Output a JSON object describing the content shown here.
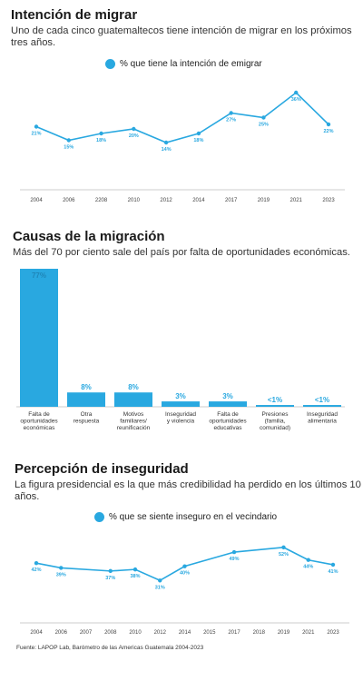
{
  "colors": {
    "accent": "#29a8e0",
    "axis": "#cccccc",
    "text": "#333333"
  },
  "section1": {
    "title": "Intención de migrar",
    "subtitle": "Uno de cada cinco guatemaltecos tiene intención de migrar en los próximos tres años.",
    "legend": "% que tiene la intención de emigrar"
  },
  "section2": {
    "title": "Causas de la migración",
    "subtitle": "Más del 70 por ciento sale del país por falta de oportunidades económicas."
  },
  "section3": {
    "title": "Percepción de inseguridad",
    "subtitle": "La figura presidencial es la que más credibilidad ha perdido en los últimos 10 años.",
    "legend": "% que se siente inseguro en el vecindario"
  },
  "source": "Fuente: LAPOP Lab, Barómetro de las Americas Guatemala 2004-2023",
  "chart_data": [
    {
      "type": "line",
      "x": [
        "2004",
        "2006",
        "2208",
        "2010",
        "2012",
        "2014",
        "2017",
        "2019",
        "2021",
        "2023"
      ],
      "series": [
        {
          "name": "% que tiene la intención de emigrar",
          "values": [
            21,
            15,
            18,
            20,
            14,
            18,
            27,
            25,
            36,
            22
          ]
        }
      ],
      "labels": [
        "21%",
        "15%",
        "18%",
        "20%",
        "14%",
        "18%",
        "27%",
        "25%",
        "36%",
        "22%"
      ],
      "ylim": [
        0,
        40
      ]
    },
    {
      "type": "bar",
      "categories": [
        [
          "Falta de",
          "oportunidades",
          "económicas"
        ],
        [
          "Otra",
          "respuesta"
        ],
        [
          "Motivos",
          "familiares/",
          "reunificación"
        ],
        [
          "Inseguridad",
          "y violencia"
        ],
        [
          "Falta de",
          "oportunidades",
          "educativas"
        ],
        [
          "Presiones",
          "(familia,",
          "comunidad)"
        ],
        [
          "Inseguridad",
          "alimentaria"
        ]
      ],
      "values": [
        77,
        8,
        8,
        3,
        3,
        1,
        1
      ],
      "labels": [
        "77%",
        "8%",
        "8%",
        "3%",
        "3%",
        "<1%",
        "<1%"
      ],
      "ylim": [
        0,
        77
      ]
    },
    {
      "type": "line",
      "x": [
        "2004",
        "2006",
        "2007",
        "2008",
        "2010",
        "2012",
        "2014",
        "2015",
        "2017",
        "2018",
        "2019",
        "2021",
        "2023"
      ],
      "series": [
        {
          "name": "% que se siente inseguro en el vecindario",
          "values": [
            42,
            39,
            null,
            37,
            38,
            31,
            40,
            null,
            49,
            null,
            52,
            44,
            41
          ]
        }
      ],
      "labels": [
        "42%",
        "39%",
        null,
        "37%",
        "38%",
        "31%",
        "40%",
        null,
        "49%",
        null,
        "52%",
        "44%",
        "41%"
      ],
      "ylim": [
        0,
        60
      ]
    }
  ]
}
